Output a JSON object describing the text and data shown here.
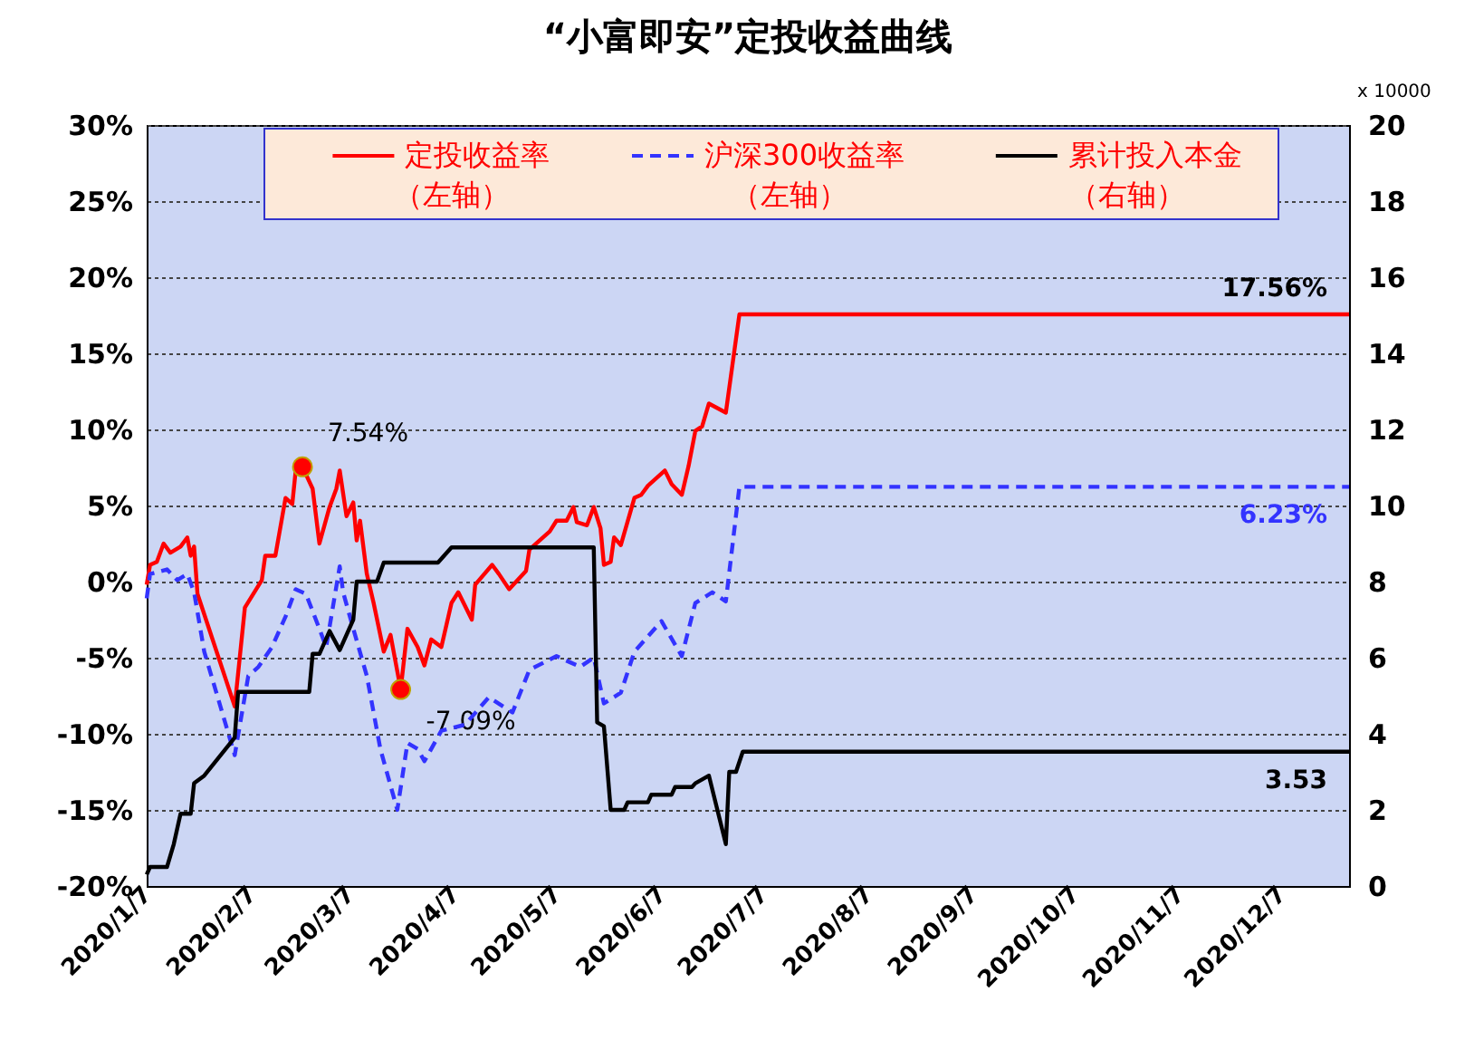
{
  "chart_data": {
    "type": "line",
    "title": "“小富即安”定投收益曲线",
    "y2label": "x 10000",
    "x": [
      "2020-01-07",
      "2020-01-08",
      "2020-01-10",
      "2020-01-12",
      "2020-01-14",
      "2020-01-17",
      "2020-01-19",
      "2020-01-20",
      "2020-01-21",
      "2020-01-22",
      "2020-02-02",
      "2020-02-05",
      "2020-02-10",
      "2020-02-11",
      "2020-02-14",
      "2020-02-17",
      "2020-02-19",
      "2020-02-20",
      "2020-02-22",
      "2020-02-25",
      "2020-02-27",
      "2020-03-01",
      "2020-03-03",
      "2020-03-04",
      "2020-03-06",
      "2020-03-08",
      "2020-03-09",
      "2020-03-10",
      "2020-03-12",
      "2020-03-14",
      "2020-03-17",
      "2020-03-19",
      "2020-03-22",
      "2020-03-24",
      "2020-03-27",
      "2020-03-29",
      "2020-03-31",
      "2020-04-03",
      "2020-04-06",
      "2020-04-08",
      "2020-04-12",
      "2020-04-13",
      "2020-04-18",
      "2020-04-20",
      "2020-04-23",
      "2020-04-28",
      "2020-04-29",
      "2020-05-05",
      "2020-05-07",
      "2020-05-10",
      "2020-05-12",
      "2020-05-13",
      "2020-05-16",
      "2020-05-18",
      "2020-05-20",
      "2020-05-21",
      "2020-05-23",
      "2020-05-24",
      "2020-05-26",
      "2020-05-30",
      "2020-06-01",
      "2020-06-03",
      "2020-06-08",
      "2020-06-10",
      "2020-06-13",
      "2020-06-15",
      "2020-06-17",
      "2020-06-19",
      "2020-06-21",
      "2020-06-26",
      "2020-06-30",
      "2020-12-27"
    ],
    "series": [
      {
        "name": "定投收益率（左轴）",
        "color": "#ff0000",
        "line_style": "solid",
        "values": [
          -0.2,
          1.1,
          1.3,
          2.5,
          1.9,
          2.3,
          2.9,
          1.7,
          2.3,
          -0.8,
          -8.2,
          -1.7,
          0.1,
          1.7,
          1.7,
          5.5,
          5.1,
          7.3,
          7.54,
          6.1,
          2.5,
          4.9,
          6.1,
          7.3,
          4.3,
          5.2,
          2.7,
          4.0,
          0.5,
          -1.4,
          -4.6,
          -3.5,
          -7.09,
          -3.1,
          -4.3,
          -5.5,
          -3.8,
          -4.3,
          -1.4,
          -0.7,
          -2.5,
          -0.2,
          1.1,
          0.5,
          -0.5,
          0.7,
          2.1,
          3.3,
          4.0,
          4.0,
          4.9,
          3.9,
          3.7,
          4.9,
          3.5,
          1.1,
          1.3,
          2.9,
          2.4,
          5.5,
          5.7,
          6.3,
          7.3,
          6.4,
          5.7,
          7.6,
          9.9,
          10.2,
          11.7,
          11.1,
          17.56,
          17.56
        ],
        "value_labels": [
          null,
          null,
          null,
          null,
          null,
          null,
          null,
          null,
          null,
          null,
          null,
          null,
          null,
          null,
          null,
          null,
          null,
          null,
          "7.54%",
          null,
          null,
          null,
          null,
          null,
          null,
          null,
          null,
          null,
          null,
          null,
          null,
          null,
          "-7.09%",
          null,
          null,
          null,
          null,
          null,
          null,
          null,
          null,
          null,
          null,
          null,
          null,
          null,
          null,
          null,
          null,
          null,
          null,
          null,
          null,
          null,
          null,
          null,
          null,
          null,
          null,
          null,
          null,
          null,
          null,
          null,
          null,
          null,
          null,
          null,
          null,
          null,
          null,
          "17.56%"
        ]
      },
      {
        "name": "沪深300收益率（左轴）",
        "color": "#3333ff",
        "line_style": "dashed",
        "x": [
          "2020-01-07",
          "2020-01-08",
          "2020-01-13",
          "2020-01-16",
          "2020-01-19",
          "2020-01-21",
          "2020-01-24",
          "2020-02-02",
          "2020-02-06",
          "2020-02-09",
          "2020-02-13",
          "2020-02-17",
          "2020-02-20",
          "2020-02-23",
          "2020-02-27",
          "2020-02-29",
          "2020-03-04",
          "2020-03-05",
          "2020-03-08",
          "2020-03-12",
          "2020-03-16",
          "2020-03-21",
          "2020-03-24",
          "2020-03-27",
          "2020-03-29",
          "2020-04-03",
          "2020-04-10",
          "2020-04-17",
          "2020-04-24",
          "2020-04-29",
          "2020-05-07",
          "2020-05-14",
          "2020-05-18",
          "2020-05-21",
          "2020-05-26",
          "2020-05-30",
          "2020-06-07",
          "2020-06-13",
          "2020-06-17",
          "2020-06-22",
          "2020-06-26",
          "2020-06-30",
          "2020-12-27"
        ],
        "values": [
          -1.1,
          0.5,
          0.8,
          0.1,
          0.5,
          -0.7,
          -4.6,
          -11.4,
          -6.2,
          -5.6,
          -4.3,
          -2.3,
          -0.5,
          -0.8,
          -3.1,
          -4.3,
          1.0,
          -0.7,
          -3.1,
          -6.2,
          -11.0,
          -15.0,
          -10.6,
          -11.0,
          -11.8,
          -9.8,
          -9.4,
          -7.6,
          -8.6,
          -5.8,
          -4.9,
          -5.6,
          -5.0,
          -8.0,
          -7.3,
          -4.6,
          -2.6,
          -4.9,
          -1.4,
          -0.7,
          -1.3,
          6.23,
          6.23
        ],
        "value_labels": [
          null,
          null,
          null,
          null,
          null,
          null,
          null,
          null,
          null,
          null,
          null,
          null,
          null,
          null,
          null,
          null,
          null,
          null,
          null,
          null,
          null,
          null,
          null,
          null,
          null,
          null,
          null,
          null,
          null,
          null,
          null,
          null,
          null,
          null,
          null,
          null,
          null,
          null,
          null,
          null,
          null,
          null,
          "6.23%"
        ]
      },
      {
        "name": "累计投入本金（右轴）",
        "color": "#000000",
        "line_style": "solid",
        "axis": "y2",
        "x": [
          "2020-01-07",
          "2020-01-08",
          "2020-01-13",
          "2020-01-15",
          "2020-01-17",
          "2020-01-20",
          "2020-01-21",
          "2020-01-24",
          "2020-02-02",
          "2020-02-03",
          "2020-02-24",
          "2020-02-25",
          "2020-02-27",
          "2020-03-01",
          "2020-03-04",
          "2020-03-08",
          "2020-03-09",
          "2020-03-15",
          "2020-03-17",
          "2020-04-02",
          "2020-04-06",
          "2020-05-18",
          "2020-05-19",
          "2020-05-21",
          "2020-05-23",
          "2020-05-27",
          "2020-05-28",
          "2020-06-03",
          "2020-06-04",
          "2020-06-10",
          "2020-06-11",
          "2020-06-16",
          "2020-06-17",
          "2020-06-21",
          "2020-06-26",
          "2020-06-27",
          "2020-06-29",
          "2020-07-01",
          "2020-12-27"
        ],
        "values": [
          0.3,
          0.5,
          0.5,
          1.1,
          1.9,
          1.9,
          2.7,
          2.9,
          3.9,
          5.1,
          5.1,
          6.1,
          6.1,
          6.7,
          6.2,
          7.0,
          8.0,
          8.0,
          8.5,
          8.5,
          8.9,
          8.9,
          4.3,
          4.2,
          2.0,
          2.0,
          2.2,
          2.2,
          2.4,
          2.4,
          2.6,
          2.6,
          2.7,
          2.9,
          1.1,
          3.0,
          3.0,
          3.53,
          3.53
        ],
        "value_labels": [
          null,
          null,
          null,
          null,
          null,
          null,
          null,
          null,
          null,
          null,
          null,
          null,
          null,
          null,
          null,
          null,
          null,
          null,
          null,
          null,
          null,
          null,
          null,
          null,
          null,
          null,
          null,
          null,
          null,
          null,
          null,
          null,
          null,
          null,
          null,
          null,
          null,
          null,
          "3.53"
        ]
      }
    ],
    "xlim": [
      "2020-01-07",
      "2020-12-27"
    ],
    "xticks": [
      {
        "value": "2020-01-07",
        "label": "2020/1/7"
      },
      {
        "value": "2020-02-07",
        "label": "2020/2/7"
      },
      {
        "value": "2020-03-07",
        "label": "2020/3/7"
      },
      {
        "value": "2020-04-07",
        "label": "2020/4/7"
      },
      {
        "value": "2020-05-07",
        "label": "2020/5/7"
      },
      {
        "value": "2020-06-07",
        "label": "2020/6/7"
      },
      {
        "value": "2020-07-07",
        "label": "2020/7/7"
      },
      {
        "value": "2020-08-07",
        "label": "2020/8/7"
      },
      {
        "value": "2020-09-07",
        "label": "2020/9/7"
      },
      {
        "value": "2020-10-07",
        "label": "2020/10/7"
      },
      {
        "value": "2020-11-07",
        "label": "2020/11/7"
      },
      {
        "value": "2020-12-07",
        "label": "2020/12/7"
      }
    ],
    "ylim": [
      -20,
      30
    ],
    "yticks": [
      {
        "value": -20,
        "label": "-20%"
      },
      {
        "value": -15,
        "label": "-15%"
      },
      {
        "value": -10,
        "label": "-10%"
      },
      {
        "value": -5,
        "label": "-5%"
      },
      {
        "value": 0,
        "label": "0%"
      },
      {
        "value": 5,
        "label": "5%"
      },
      {
        "value": 10,
        "label": "10%"
      },
      {
        "value": 15,
        "label": "15%"
      },
      {
        "value": 20,
        "label": "20%"
      },
      {
        "value": 25,
        "label": "25%"
      },
      {
        "value": 30,
        "label": "30%"
      }
    ],
    "y2lim": [
      0,
      20
    ],
    "y2ticks": [
      0,
      2,
      4,
      6,
      8,
      10,
      12,
      14,
      16,
      18,
      20
    ],
    "grid": "y",
    "legend": "top",
    "marker": "none"
  }
}
